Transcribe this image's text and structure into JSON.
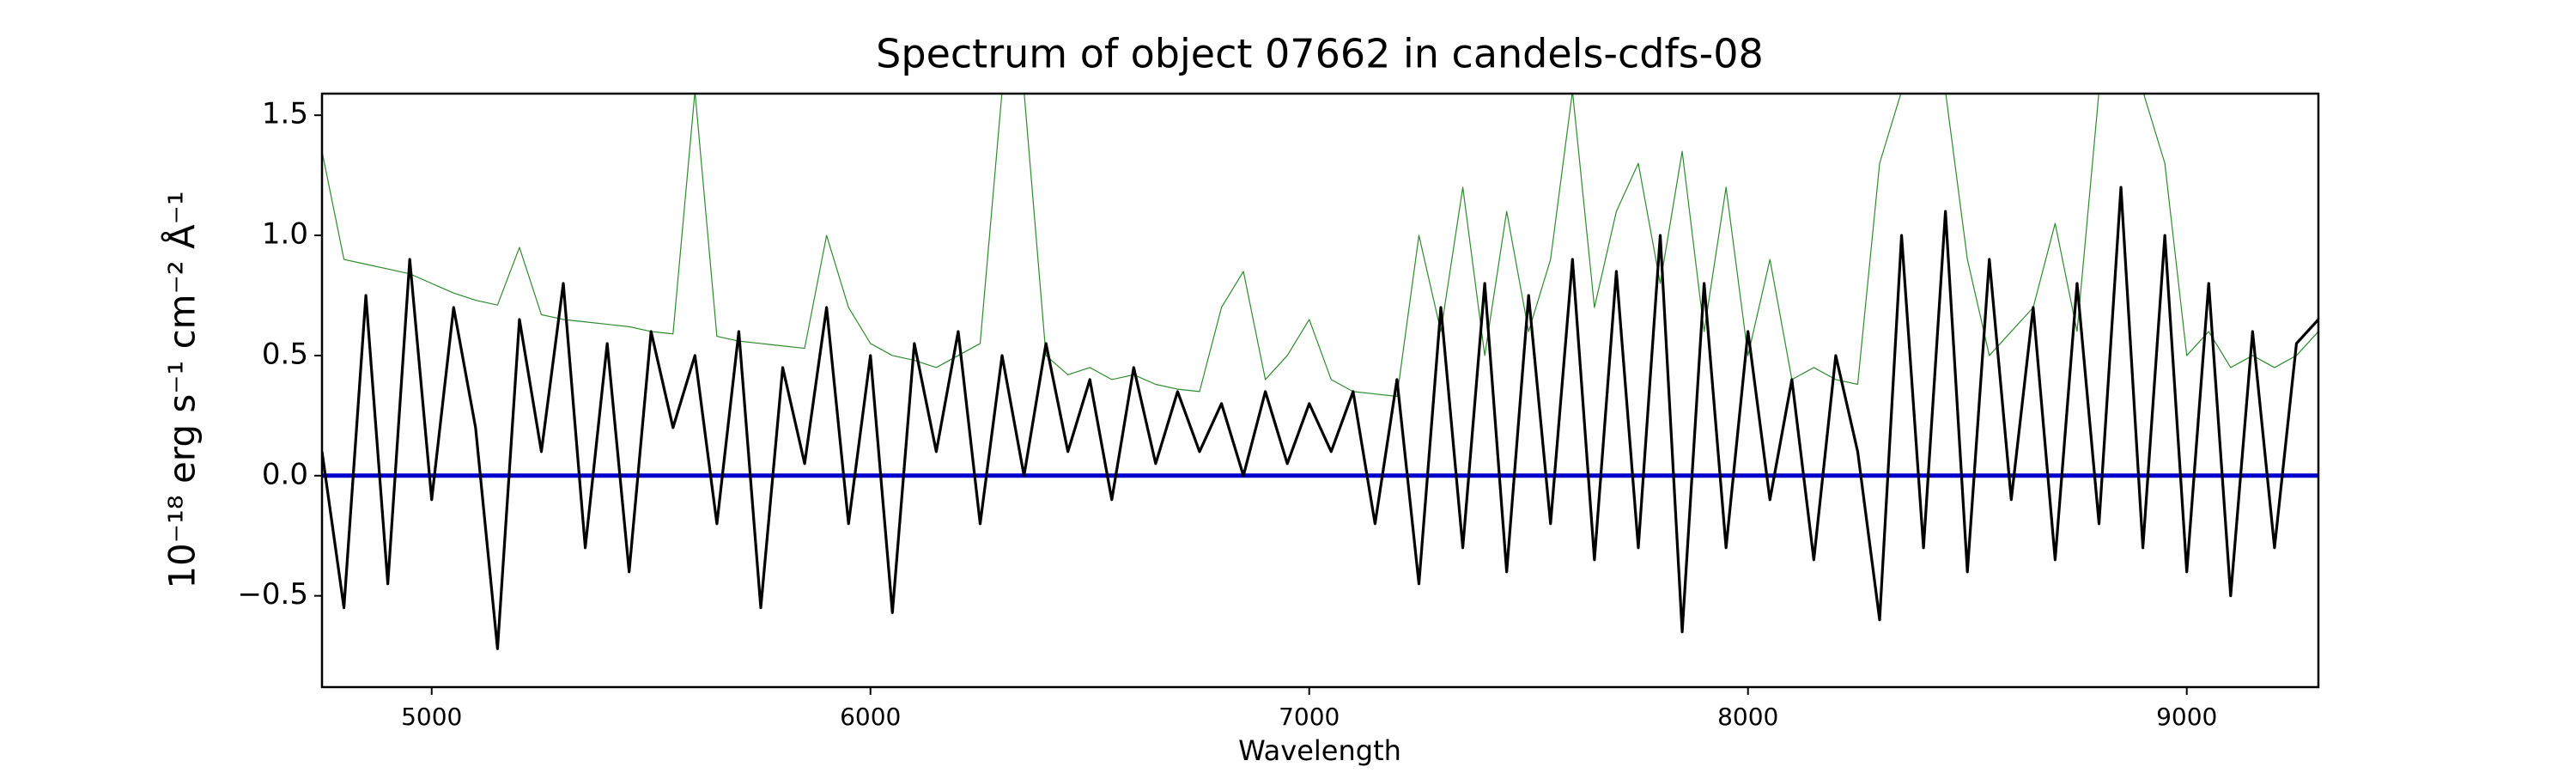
{
  "chart_data": {
    "type": "line",
    "title": "Spectrum of object 07662 in candels-cdfs-08",
    "xlabel": "Wavelength",
    "ylabel": "10⁻¹⁸ erg s⁻¹ cm⁻² Å⁻¹",
    "x": [
      4750,
      4800,
      4850,
      4900,
      4950,
      5000,
      5050,
      5100,
      5150,
      5200,
      5250,
      5300,
      5350,
      5400,
      5450,
      5500,
      5550,
      5600,
      5650,
      5700,
      5750,
      5800,
      5850,
      5900,
      5950,
      6000,
      6050,
      6100,
      6150,
      6200,
      6250,
      6300,
      6350,
      6400,
      6450,
      6500,
      6550,
      6600,
      6650,
      6700,
      6750,
      6800,
      6850,
      6900,
      6950,
      7000,
      7050,
      7100,
      7150,
      7200,
      7250,
      7300,
      7350,
      7400,
      7450,
      7500,
      7550,
      7600,
      7650,
      7700,
      7750,
      7800,
      7850,
      7900,
      7950,
      8000,
      8050,
      8100,
      8150,
      8200,
      8250,
      8300,
      8350,
      8400,
      8450,
      8500,
      8550,
      8600,
      8650,
      8700,
      8750,
      8800,
      8850,
      8900,
      8950,
      9000,
      9050,
      9100,
      9150,
      9200,
      9250,
      9300
    ],
    "series": [
      {
        "color": "#2e8b2e",
        "width": 1.2,
        "values": [
          1.35,
          0.9,
          0.88,
          0.86,
          0.84,
          0.8,
          0.76,
          0.73,
          0.71,
          0.95,
          0.67,
          0.65,
          0.64,
          0.63,
          0.62,
          0.6,
          0.59,
          1.6,
          0.58,
          0.56,
          0.55,
          0.54,
          0.53,
          1.0,
          0.7,
          0.55,
          0.5,
          0.48,
          0.45,
          0.5,
          0.55,
          1.6,
          1.6,
          0.5,
          0.42,
          0.45,
          0.4,
          0.42,
          0.38,
          0.36,
          0.35,
          0.7,
          0.85,
          0.4,
          0.5,
          0.65,
          0.4,
          0.35,
          0.34,
          0.33,
          1.0,
          0.6,
          1.2,
          0.5,
          1.1,
          0.6,
          0.9,
          1.6,
          0.7,
          1.1,
          1.3,
          0.8,
          1.35,
          0.6,
          1.2,
          0.5,
          0.9,
          0.4,
          0.45,
          0.4,
          0.38,
          1.3,
          1.6,
          1.6,
          1.6,
          0.9,
          0.5,
          0.6,
          0.7,
          1.05,
          0.6,
          1.6,
          1.6,
          1.6,
          1.3,
          0.5,
          0.6,
          0.45,
          0.5,
          0.45,
          0.5,
          0.6
        ]
      },
      {
        "color": "#0000cc",
        "width": 5,
        "values": [
          0,
          0,
          0,
          0,
          0,
          0,
          0,
          0,
          0,
          0,
          0,
          0,
          0,
          0,
          0,
          0,
          0,
          0,
          0,
          0,
          0,
          0,
          0,
          0,
          0,
          0,
          0,
          0,
          0,
          0,
          0,
          0,
          0,
          0,
          0,
          0,
          0,
          0,
          0,
          0,
          0,
          0,
          0,
          0,
          0,
          0,
          0,
          0,
          0,
          0,
          0,
          0,
          0,
          0,
          0,
          0,
          0,
          0,
          0,
          0,
          0,
          0,
          0,
          0,
          0,
          0,
          0,
          0,
          0,
          0,
          0,
          0,
          0,
          0,
          0,
          0,
          0,
          0,
          0,
          0,
          0,
          0,
          0,
          0,
          0,
          0,
          0,
          0,
          0,
          0,
          0,
          0
        ]
      },
      {
        "color": "#000000",
        "width": 3.2,
        "values": [
          0.1,
          -0.55,
          0.75,
          -0.45,
          0.9,
          -0.1,
          0.7,
          0.2,
          -0.72,
          0.65,
          0.1,
          0.8,
          -0.3,
          0.55,
          -0.4,
          0.6,
          0.2,
          0.5,
          -0.2,
          0.6,
          -0.55,
          0.45,
          0.05,
          0.7,
          -0.2,
          0.5,
          -0.57,
          0.55,
          0.1,
          0.6,
          -0.2,
          0.5,
          0.0,
          0.55,
          0.1,
          0.4,
          -0.1,
          0.45,
          0.05,
          0.35,
          0.1,
          0.3,
          0.0,
          0.35,
          0.05,
          0.3,
          0.1,
          0.35,
          -0.2,
          0.4,
          -0.45,
          0.7,
          -0.3,
          0.8,
          -0.4,
          0.75,
          -0.2,
          0.9,
          -0.35,
          0.85,
          -0.3,
          1.0,
          -0.65,
          0.8,
          -0.3,
          0.6,
          -0.1,
          0.4,
          -0.35,
          0.5,
          0.1,
          -0.6,
          1.0,
          -0.3,
          1.1,
          -0.4,
          0.9,
          -0.1,
          0.7,
          -0.35,
          0.8,
          -0.2,
          1.2,
          -0.3,
          1.0,
          -0.4,
          0.8,
          -0.5,
          0.6,
          -0.3,
          0.55,
          0.65
        ]
      }
    ],
    "xlim": [
      4750,
      9300
    ],
    "ylim": [
      -0.88,
      1.59
    ],
    "xticks": [
      5000,
      6000,
      7000,
      8000,
      9000
    ],
    "yticks": [
      {
        "value": -0.5,
        "label": "−0.5"
      },
      {
        "value": 0,
        "label": "0.0"
      },
      0.5,
      {
        "value": 1,
        "label": "1.0"
      },
      1.5
    ]
  }
}
